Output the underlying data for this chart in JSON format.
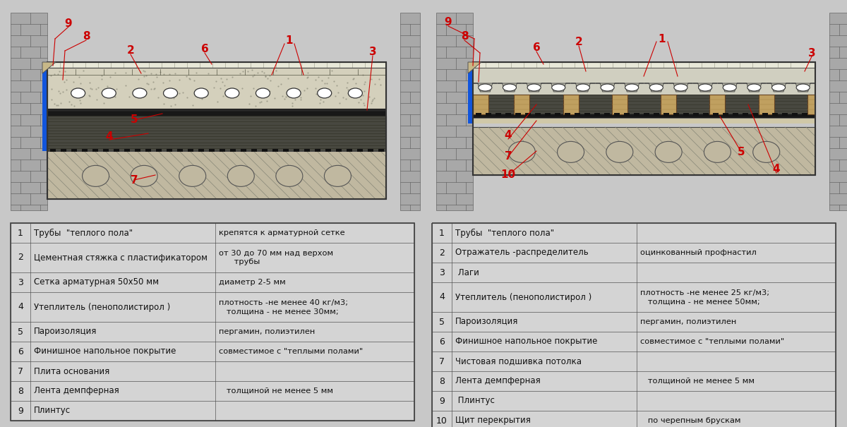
{
  "bg_color": "#c8c8c8",
  "table1": {
    "rows": [
      [
        "1",
        "Трубы  \"теплого пола\"",
        "крепятся к арматурной сетке"
      ],
      [
        "2",
        "Цементная стяжка с пластификатором",
        "от 30 до 70 мм над верхом\n      трубы"
      ],
      [
        "3",
        "Сетка арматурная 50х50 мм",
        "диаметр 2-5 мм"
      ],
      [
        "4",
        "Утеплитель (пенополистирол )",
        "плотность -не менее 40 кг/м3;\n   толщина - не менее 30мм;"
      ],
      [
        "5",
        "Пароизоляция",
        "пергамин, полиэтилен"
      ],
      [
        "6",
        "Финишное напольное покрытие",
        "совместимое с \"теплыми полами\""
      ],
      [
        "7",
        "Плита основания",
        ""
      ],
      [
        "8",
        "Лента демпферная",
        "   толщиной не менее 5 мм"
      ],
      [
        "9",
        "Плинтус",
        ""
      ]
    ]
  },
  "table2": {
    "rows": [
      [
        "1",
        "Трубы  \"теплого пола\"",
        ""
      ],
      [
        "2",
        "Отражатель -распределитель",
        "оцинкованный профнастил"
      ],
      [
        "3",
        " Лаги",
        ""
      ],
      [
        "4",
        "Утеплитель (пенополистирол )",
        "плотность -не менее 25 кг/м3;\n   толщина - не менее 50мм;"
      ],
      [
        "5",
        "Пароизоляция",
        "пергамин, полиэтилен"
      ],
      [
        "6",
        "Финишное напольное покрытие",
        "совместимое с \"теплыми полами\""
      ],
      [
        "7",
        "Чистовая подшивка потолка",
        ""
      ],
      [
        "8",
        "Лента демпферная",
        "   толщиной не менее 5 мм"
      ],
      [
        "9",
        " Плинтус",
        ""
      ],
      [
        "10",
        "Щит перекрытия",
        "   по черепным брускам"
      ]
    ]
  },
  "label_color": "#cc0000",
  "line_color": "#333333"
}
